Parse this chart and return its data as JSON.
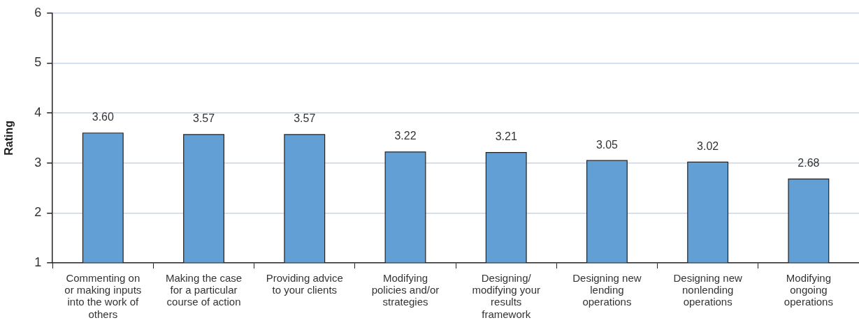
{
  "chart_data": {
    "type": "bar",
    "ylabel": "Rating",
    "categories": [
      "Commenting on or making inputs into the work of others",
      "Making the case for a particular course of action",
      "Providing advice to your clients",
      "Modifying policies and/or strategies",
      "Designing/ modifying your results framework",
      "Designing new lending operations",
      "Designing new nonlending operations",
      "Modifying ongoing operations"
    ],
    "values": [
      3.6,
      3.57,
      3.57,
      3.22,
      3.21,
      3.05,
      3.02,
      2.68
    ],
    "value_labels": [
      "3.60",
      "3.57",
      "3.57",
      "3.22",
      "3.21",
      "3.05",
      "3.02",
      "2.68"
    ],
    "color": "#619fd5",
    "ylim": [
      1,
      6
    ],
    "yticks": [
      1,
      2,
      3,
      4,
      5,
      6
    ],
    "grid": "y"
  }
}
